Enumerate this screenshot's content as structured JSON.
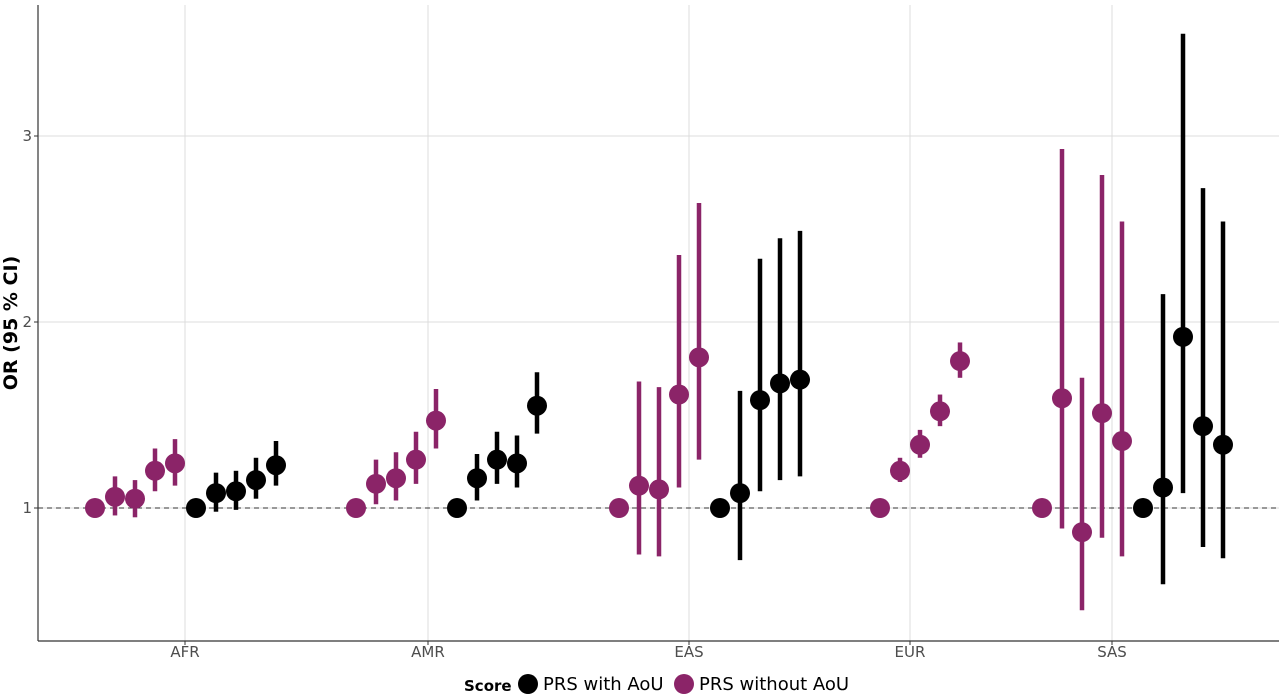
{
  "chart_data": {
    "type": "scatter",
    "subtype": "point-range (odds ratio with 95% CI)",
    "title": "",
    "xlabel": "",
    "ylabel": "OR (95 % CI)",
    "categories": [
      "AFR",
      "AMR",
      "EAS",
      "EUR",
      "SAS"
    ],
    "y_ticks": [
      1,
      2,
      3
    ],
    "ylim": [
      0.35,
      3.7
    ],
    "reference_line": {
      "y": 1,
      "style": "dashed"
    },
    "grid": true,
    "legend": {
      "title": "Score",
      "position": "bottom"
    },
    "series": [
      {
        "name": "PRS without AoU",
        "color": "#8B2468",
        "groups": {
          "AFR": [
            {
              "or": 1.0,
              "lo": 1.0,
              "hi": 1.0
            },
            {
              "or": 1.06,
              "lo": 0.96,
              "hi": 1.17
            },
            {
              "or": 1.05,
              "lo": 0.95,
              "hi": 1.15
            },
            {
              "or": 1.2,
              "lo": 1.09,
              "hi": 1.32
            },
            {
              "or": 1.24,
              "lo": 1.12,
              "hi": 1.37
            }
          ],
          "AMR": [
            {
              "or": 1.0,
              "lo": 1.0,
              "hi": 1.0
            },
            {
              "or": 1.13,
              "lo": 1.02,
              "hi": 1.26
            },
            {
              "or": 1.16,
              "lo": 1.04,
              "hi": 1.3
            },
            {
              "or": 1.26,
              "lo": 1.13,
              "hi": 1.41
            },
            {
              "or": 1.47,
              "lo": 1.32,
              "hi": 1.64
            }
          ],
          "EAS": [
            {
              "or": 1.0,
              "lo": 1.0,
              "hi": 1.0
            },
            {
              "or": 1.12,
              "lo": 0.75,
              "hi": 1.68
            },
            {
              "or": 1.1,
              "lo": 0.74,
              "hi": 1.65
            },
            {
              "or": 1.61,
              "lo": 1.11,
              "hi": 2.36
            },
            {
              "or": 1.81,
              "lo": 1.26,
              "hi": 2.64
            }
          ],
          "EUR": [
            {
              "or": 1.0,
              "lo": 1.0,
              "hi": 1.0
            },
            {
              "or": 1.2,
              "lo": 1.14,
              "hi": 1.27
            },
            {
              "or": 1.34,
              "lo": 1.27,
              "hi": 1.42
            },
            {
              "or": 1.52,
              "lo": 1.44,
              "hi": 1.61
            },
            {
              "or": 1.79,
              "lo": 1.7,
              "hi": 1.89
            }
          ],
          "SAS": [
            {
              "or": 1.0,
              "lo": 1.0,
              "hi": 1.0
            },
            {
              "or": 1.59,
              "lo": 0.89,
              "hi": 2.93
            },
            {
              "or": 0.87,
              "lo": 0.45,
              "hi": 1.7
            },
            {
              "or": 1.51,
              "lo": 0.84,
              "hi": 2.79
            },
            {
              "or": 1.36,
              "lo": 0.74,
              "hi": 2.54
            }
          ]
        }
      },
      {
        "name": "PRS with AoU",
        "color": "#000000",
        "groups": {
          "AFR": [
            {
              "or": 1.0,
              "lo": 1.0,
              "hi": 1.0
            },
            {
              "or": 1.08,
              "lo": 0.98,
              "hi": 1.19
            },
            {
              "or": 1.09,
              "lo": 0.99,
              "hi": 1.2
            },
            {
              "or": 1.15,
              "lo": 1.05,
              "hi": 1.27
            },
            {
              "or": 1.23,
              "lo": 1.12,
              "hi": 1.36
            }
          ],
          "AMR": [
            {
              "or": 1.0,
              "lo": 1.0,
              "hi": 1.0
            },
            {
              "or": 1.16,
              "lo": 1.04,
              "hi": 1.29
            },
            {
              "or": 1.26,
              "lo": 1.13,
              "hi": 1.41
            },
            {
              "or": 1.24,
              "lo": 1.11,
              "hi": 1.39
            },
            {
              "or": 1.55,
              "lo": 1.4,
              "hi": 1.73
            }
          ],
          "EAS": [
            {
              "or": 1.0,
              "lo": 1.0,
              "hi": 1.0
            },
            {
              "or": 1.08,
              "lo": 0.72,
              "hi": 1.63
            },
            {
              "or": 1.58,
              "lo": 1.09,
              "hi": 2.34
            },
            {
              "or": 1.67,
              "lo": 1.15,
              "hi": 2.45
            },
            {
              "or": 1.69,
              "lo": 1.17,
              "hi": 2.49
            }
          ],
          "SAS": [
            {
              "or": 1.0,
              "lo": 1.0,
              "hi": 1.0
            },
            {
              "or": 1.11,
              "lo": 0.59,
              "hi": 2.15
            },
            {
              "or": 1.92,
              "lo": 1.08,
              "hi": 3.55
            },
            {
              "or": 1.44,
              "lo": 0.79,
              "hi": 2.72
            },
            {
              "or": 1.34,
              "lo": 0.73,
              "hi": 2.54
            }
          ]
        }
      }
    ]
  }
}
